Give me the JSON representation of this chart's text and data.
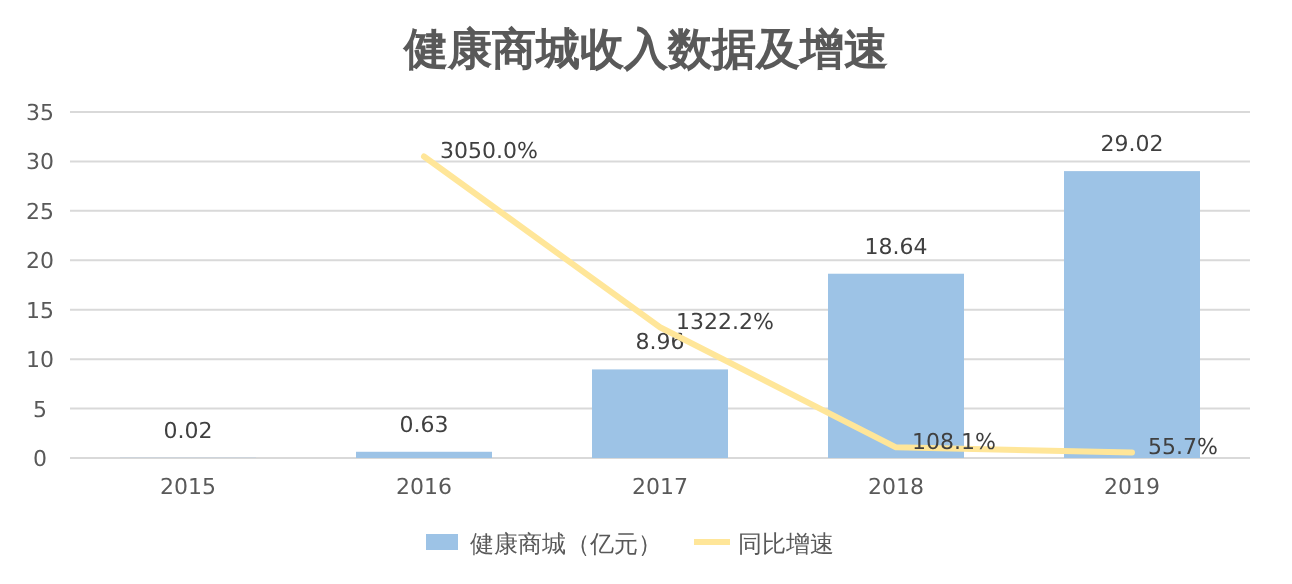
{
  "chart_data": {
    "type": "bar",
    "title": "健康商城收入数据及增速",
    "categories": [
      "2015",
      "2016",
      "2017",
      "2018",
      "2019"
    ],
    "series": [
      {
        "name": "健康商城（亿元）",
        "color": "#9dc3e6",
        "values": [
          0.02,
          0.63,
          8.96,
          18.64,
          29.02
        ],
        "value_labels": [
          "0.02",
          "0.63",
          "8.96",
          "18.64",
          "29.02"
        ]
      },
      {
        "name": "同比增速",
        "type": "line",
        "axis": "y2",
        "color": "#ffe699",
        "values": [
          null,
          3050.0,
          1322.2,
          108.1,
          55.7
        ],
        "value_labels": [
          null,
          "3050.0%",
          "1322.2%",
          "108.1%",
          "55.7%"
        ]
      }
    ],
    "ylim": [
      0,
      35
    ],
    "yticks": [
      0,
      5,
      10,
      15,
      20,
      25,
      30,
      35
    ],
    "y2lim": [
      0,
      3500
    ],
    "tick_labels": "xy",
    "grid": "y",
    "legend": "bottom",
    "marker": "none",
    "line_style": "solid"
  }
}
